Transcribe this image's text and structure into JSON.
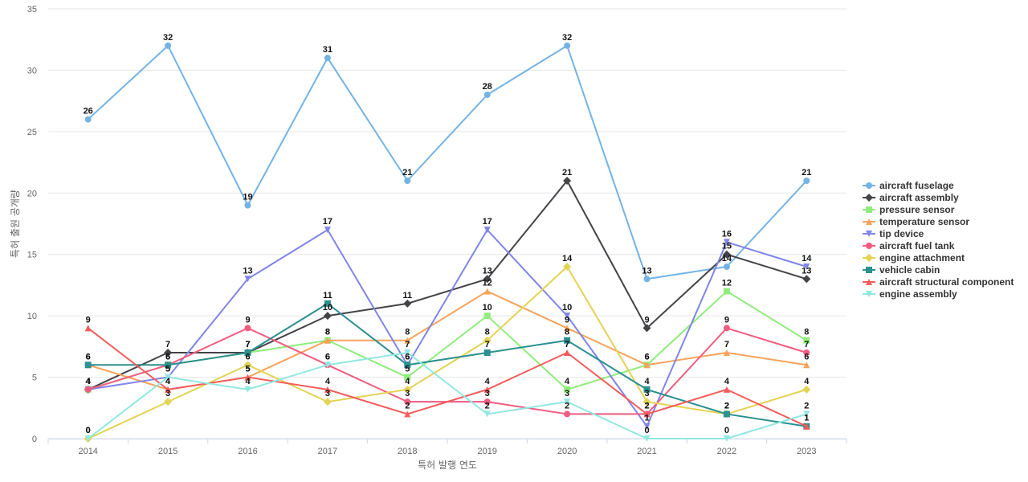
{
  "chart_data": {
    "type": "line",
    "title": "",
    "xlabel": "특허 발행 연도",
    "ylabel": "특허 출원 공개량",
    "ylim": [
      0,
      35
    ],
    "y_ticks": [
      0,
      5,
      10,
      15,
      20,
      25,
      30,
      35
    ],
    "grid": true,
    "legend_position": "right",
    "x": [
      "2014",
      "2015",
      "2016",
      "2017",
      "2018",
      "2019",
      "2020",
      "2021",
      "2022",
      "2023"
    ],
    "series": [
      {
        "name": "aircraft fuselage",
        "color": "#74b3e6",
        "marker": "circle",
        "values": [
          26,
          32,
          19,
          31,
          21,
          28,
          32,
          13,
          14,
          21
        ]
      },
      {
        "name": "aircraft assembly",
        "color": "#434348",
        "marker": "diamond",
        "values": [
          4,
          7,
          7,
          10,
          11,
          13,
          21,
          9,
          15,
          13
        ]
      },
      {
        "name": "pressure sensor",
        "color": "#90ed7d",
        "marker": "square",
        "values": [
          4,
          6,
          7,
          8,
          5,
          10,
          4,
          6,
          12,
          8
        ]
      },
      {
        "name": "temperature sensor",
        "color": "#f7a35c",
        "marker": "triangle",
        "values": [
          6,
          4,
          5,
          8,
          8,
          12,
          9,
          6,
          7,
          6
        ]
      },
      {
        "name": "tip device",
        "color": "#8085e9",
        "marker": "triangle-down",
        "values": [
          4,
          5,
          13,
          17,
          6,
          17,
          10,
          1,
          16,
          14
        ]
      },
      {
        "name": "aircraft fuel tank",
        "color": "#f15c80",
        "marker": "circle",
        "values": [
          4,
          6,
          9,
          6,
          3,
          3,
          2,
          2,
          9,
          7
        ]
      },
      {
        "name": "engine attachment",
        "color": "#e4d354",
        "marker": "diamond",
        "values": [
          0,
          3,
          6,
          3,
          4,
          8,
          14,
          3,
          2,
          4
        ]
      },
      {
        "name": "vehicle cabin",
        "color": "#2b908f",
        "marker": "square",
        "values": [
          6,
          6,
          7,
          11,
          6,
          7,
          8,
          4,
          2,
          1
        ]
      },
      {
        "name": "aircraft structural component",
        "color": "#f45b5b",
        "marker": "triangle",
        "values": [
          9,
          4,
          5,
          4,
          2,
          4,
          7,
          2,
          4,
          1
        ]
      },
      {
        "name": "engine assembly",
        "color": "#91e8e1",
        "marker": "triangle-down",
        "values": [
          0,
          5,
          4,
          6,
          7,
          2,
          3,
          0,
          0,
          2
        ]
      }
    ]
  }
}
